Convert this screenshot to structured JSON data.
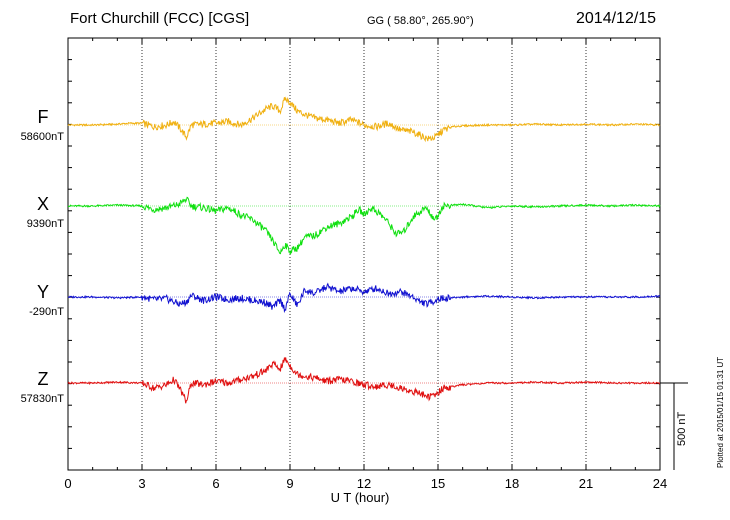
{
  "header": {
    "title": "Fort Churchill (FCC)  [CGS]",
    "coords": "GG ( 58.80°, 265.90°)",
    "date": "2014/12/15"
  },
  "scale": {
    "label": "500 nT"
  },
  "plotted_note": "Plotted at 2015/01/15 01:31  UT",
  "chart_data": {
    "type": "line",
    "title": "Fort Churchill (FCC)  [CGS]",
    "xlabel": "U T (hour)",
    "ylabel": "",
    "xlim": [
      0,
      24
    ],
    "xticks": [
      "0",
      "3",
      "6",
      "9",
      "12",
      "15",
      "18",
      "21",
      "24"
    ],
    "grid": true,
    "scale_nT": 500,
    "series": [
      {
        "name": "F",
        "baseline_label": "58600nT",
        "color": "#f0b010",
        "x": [
          0,
          1,
          2,
          2.5,
          3,
          3.5,
          4,
          4.3,
          4.6,
          4.8,
          5,
          5.5,
          6,
          6.5,
          7,
          7.5,
          8,
          8.3,
          8.6,
          8.8,
          9,
          9.3,
          9.6,
          10,
          10.5,
          11,
          11.5,
          12,
          12.5,
          13,
          13.5,
          14,
          14.3,
          14.6,
          14.9,
          15.2,
          15.6,
          16,
          17,
          18,
          19,
          20,
          21,
          22,
          23,
          24
        ],
        "y": [
          0,
          0,
          5,
          10,
          10,
          -10,
          0,
          20,
          -30,
          -70,
          0,
          5,
          10,
          20,
          0,
          40,
          90,
          110,
          80,
          150,
          130,
          80,
          60,
          40,
          30,
          10,
          30,
          0,
          -10,
          10,
          -30,
          -40,
          -60,
          -80,
          -70,
          -30,
          -10,
          -5,
          0,
          0,
          5,
          0,
          5,
          0,
          5,
          0
        ]
      },
      {
        "name": "X",
        "baseline_label": "9390nT",
        "color": "#10e010",
        "x": [
          0,
          1,
          2,
          3,
          3.5,
          4,
          4.5,
          4.8,
          5,
          5.5,
          6,
          6.5,
          7,
          7.5,
          8,
          8.3,
          8.6,
          8.8,
          9,
          9.3,
          9.6,
          10,
          10.5,
          11,
          11.5,
          11.8,
          12,
          12.3,
          12.6,
          12.9,
          13.3,
          13.6,
          14,
          14.5,
          14.9,
          15.2,
          16,
          17,
          18,
          19,
          20,
          21,
          22,
          23,
          24
        ],
        "y": [
          0,
          0,
          5,
          0,
          -20,
          -10,
          10,
          40,
          0,
          -10,
          -30,
          -10,
          -50,
          -80,
          -140,
          -200,
          -270,
          -220,
          -260,
          -240,
          -180,
          -170,
          -120,
          -100,
          -60,
          -20,
          -50,
          -10,
          -40,
          -80,
          -160,
          -150,
          -60,
          -10,
          -80,
          0,
          10,
          -10,
          0,
          -5,
          0,
          5,
          0,
          5,
          0
        ]
      },
      {
        "name": "Y",
        "baseline_label": "-290nT",
        "color": "#1010d0",
        "x": [
          0,
          1,
          2,
          3,
          3.5,
          4,
          4.5,
          4.8,
          5,
          5.5,
          6,
          6.5,
          7,
          7.5,
          8,
          8.3,
          8.6,
          8.8,
          9,
          9.3,
          9.6,
          10,
          10.5,
          11,
          11.5,
          12,
          12.5,
          13,
          13.5,
          14,
          14.3,
          14.6,
          15,
          16,
          17,
          18,
          19,
          20,
          21,
          22,
          23,
          24
        ],
        "y": [
          0,
          0,
          -5,
          0,
          -15,
          -10,
          -40,
          -30,
          10,
          -20,
          0,
          -15,
          -5,
          -20,
          -30,
          -60,
          -20,
          -70,
          20,
          -50,
          40,
          20,
          60,
          30,
          50,
          30,
          50,
          20,
          30,
          0,
          -30,
          -40,
          -10,
          0,
          5,
          0,
          -5,
          0,
          0,
          0,
          0,
          5
        ]
      },
      {
        "name": "Z",
        "baseline_label": "57830nT",
        "color": "#e01010",
        "x": [
          0,
          1,
          2,
          3,
          3.5,
          4,
          4.3,
          4.6,
          4.8,
          5,
          5.5,
          6,
          6.5,
          7,
          7.5,
          8,
          8.3,
          8.6,
          8.8,
          9,
          9.3,
          9.6,
          10,
          10.5,
          11,
          11.5,
          12,
          12.5,
          13,
          13.5,
          14,
          14.3,
          14.6,
          14.9,
          15.2,
          16,
          17,
          18,
          19,
          20,
          21,
          22,
          23,
          24
        ],
        "y": [
          0,
          0,
          5,
          0,
          -30,
          -10,
          20,
          -50,
          -110,
          0,
          -10,
          10,
          0,
          20,
          40,
          70,
          110,
          80,
          140,
          100,
          50,
          40,
          30,
          10,
          20,
          10,
          -10,
          -20,
          -10,
          -30,
          -50,
          -60,
          -80,
          -70,
          -30,
          -10,
          0,
          0,
          5,
          0,
          5,
          0,
          0,
          0
        ]
      }
    ]
  }
}
